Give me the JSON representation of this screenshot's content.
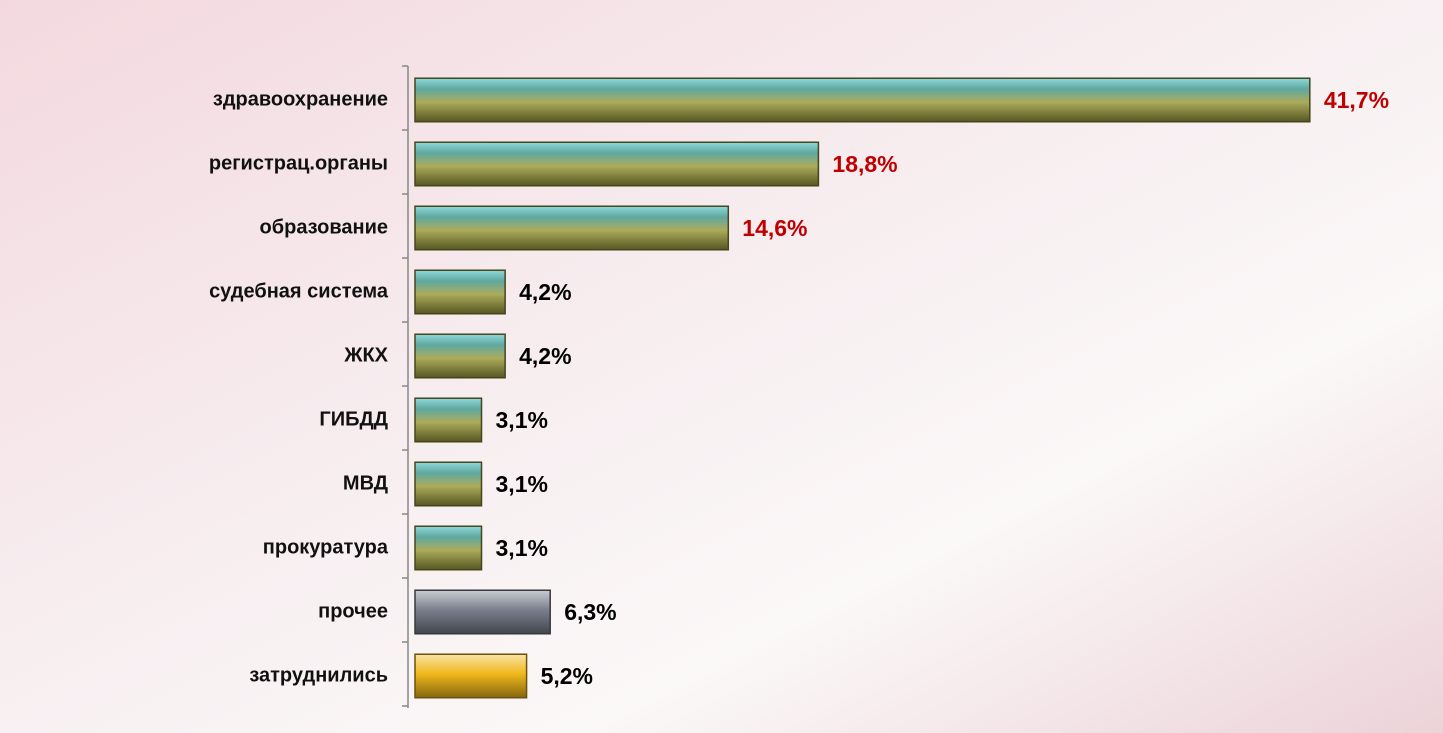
{
  "chart_data": {
    "type": "hbar",
    "categories": [
      "здравоохранение",
      "регистрац.органы",
      "образование",
      "судебная система",
      "ЖКХ",
      "ГИБДД",
      "МВД",
      "прокуратура",
      "прочее",
      "затруднились"
    ],
    "values": [
      41.7,
      18.8,
      14.6,
      4.2,
      4.2,
      3.1,
      3.1,
      3.1,
      6.3,
      5.2
    ],
    "value_labels": [
      "41,7%",
      "18,8%",
      "14,6%",
      "4,2%",
      "4,2%",
      "3,1%",
      "3,1%",
      "3,1%",
      "6,3%",
      "5,2%"
    ],
    "colors": [
      "#9c9c3e",
      "#9c9c3e",
      "#9c9c3e",
      "#9c9c3e",
      "#9c9c3e",
      "#9c9c3e",
      "#9c9c3e",
      "#9c9c3e",
      "#7a7f8c",
      "#f0b81c"
    ],
    "label_colors": [
      "#c00000",
      "#c00000",
      "#c00000",
      "#000000",
      "#000000",
      "#000000",
      "#000000",
      "#000000",
      "#000000",
      "#000000"
    ],
    "xlim": [
      0,
      48
    ]
  }
}
